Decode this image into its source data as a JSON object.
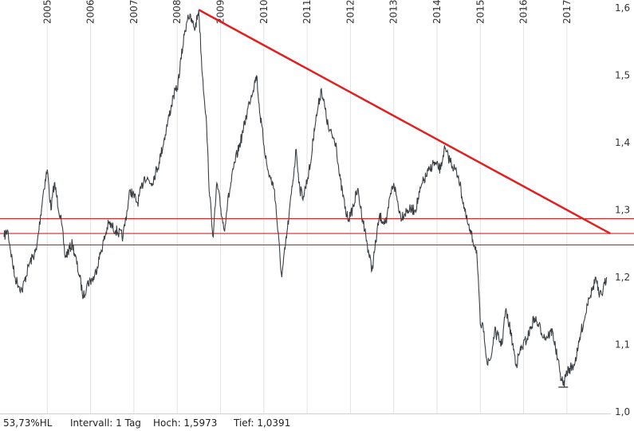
{
  "chart_data": {
    "type": "line",
    "x_axis": {
      "type": "time",
      "ticks": [
        "2005",
        "2006",
        "2007",
        "2008",
        "2009",
        "2010",
        "2011",
        "2012",
        "2013",
        "2014",
        "2015",
        "2016",
        "2017"
      ]
    },
    "y_axis": {
      "position": "right",
      "ticks": [
        "1,6",
        "1,5",
        "1,4",
        "1,3",
        "1,2",
        "1,1",
        "1,0"
      ],
      "ylim": [
        1.0,
        1.6
      ]
    },
    "grid": "vertical",
    "series": [
      {
        "color": "#3a3f44",
        "points": [
          [
            "2004-01-01",
            1.26
          ],
          [
            "2004-02-01",
            1.27
          ],
          [
            "2004-04-01",
            1.2
          ],
          [
            "2004-06-01",
            1.18
          ],
          [
            "2004-08-01",
            1.22
          ],
          [
            "2004-10-01",
            1.24
          ],
          [
            "2004-12-01",
            1.33
          ],
          [
            "2005-01-01",
            1.36
          ],
          [
            "2005-02-01",
            1.3
          ],
          [
            "2005-03-01",
            1.34
          ],
          [
            "2005-05-01",
            1.28
          ],
          [
            "2005-06-01",
            1.23
          ],
          [
            "2005-08-01",
            1.25
          ],
          [
            "2005-10-01",
            1.2
          ],
          [
            "2005-11-01",
            1.17
          ],
          [
            "2005-12-01",
            1.19
          ],
          [
            "2006-02-01",
            1.2
          ],
          [
            "2006-04-01",
            1.24
          ],
          [
            "2006-06-01",
            1.28
          ],
          [
            "2006-08-01",
            1.27
          ],
          [
            "2006-10-01",
            1.26
          ],
          [
            "2006-12-01",
            1.33
          ],
          [
            "2007-02-01",
            1.31
          ],
          [
            "2007-04-01",
            1.35
          ],
          [
            "2007-06-01",
            1.34
          ],
          [
            "2007-08-01",
            1.37
          ],
          [
            "2007-10-01",
            1.42
          ],
          [
            "2007-12-01",
            1.47
          ],
          [
            "2008-01-01",
            1.48
          ],
          [
            "2008-03-01",
            1.56
          ],
          [
            "2008-04-01",
            1.59
          ],
          [
            "2008-06-01",
            1.57
          ],
          [
            "2008-07-01",
            1.5973
          ],
          [
            "2008-08-01",
            1.5
          ],
          [
            "2008-09-01",
            1.44
          ],
          [
            "2008-10-01",
            1.32
          ],
          [
            "2008-11-01",
            1.26
          ],
          [
            "2008-12-01",
            1.34
          ],
          [
            "2009-02-01",
            1.27
          ],
          [
            "2009-03-01",
            1.31
          ],
          [
            "2009-05-01",
            1.37
          ],
          [
            "2009-07-01",
            1.41
          ],
          [
            "2009-09-01",
            1.46
          ],
          [
            "2009-11-01",
            1.5
          ],
          [
            "2009-12-01",
            1.44
          ],
          [
            "2010-02-01",
            1.36
          ],
          [
            "2010-04-01",
            1.33
          ],
          [
            "2010-06-01",
            1.2
          ],
          [
            "2010-08-01",
            1.29
          ],
          [
            "2010-10-01",
            1.39
          ],
          [
            "2010-11-01",
            1.33
          ],
          [
            "2010-12-01",
            1.32
          ],
          [
            "2011-02-01",
            1.37
          ],
          [
            "2011-03-01",
            1.42
          ],
          [
            "2011-04-01",
            1.45
          ],
          [
            "2011-05-01",
            1.48
          ],
          [
            "2011-07-01",
            1.42
          ],
          [
            "2011-09-01",
            1.4
          ],
          [
            "2011-10-01",
            1.35
          ],
          [
            "2011-12-01",
            1.29
          ],
          [
            "2012-01-01",
            1.29
          ],
          [
            "2012-03-01",
            1.33
          ],
          [
            "2012-05-01",
            1.27
          ],
          [
            "2012-07-01",
            1.21
          ],
          [
            "2012-09-01",
            1.29
          ],
          [
            "2012-11-01",
            1.28
          ],
          [
            "2012-12-01",
            1.32
          ],
          [
            "2013-01-01",
            1.34
          ],
          [
            "2013-03-01",
            1.29
          ],
          [
            "2013-05-01",
            1.3
          ],
          [
            "2013-07-01",
            1.3
          ],
          [
            "2013-09-01",
            1.34
          ],
          [
            "2013-11-01",
            1.36
          ],
          [
            "2013-12-01",
            1.37
          ],
          [
            "2014-02-01",
            1.36
          ],
          [
            "2014-03-01",
            1.39
          ],
          [
            "2014-05-01",
            1.37
          ],
          [
            "2014-07-01",
            1.35
          ],
          [
            "2014-09-01",
            1.29
          ],
          [
            "2014-10-01",
            1.27
          ],
          [
            "2014-12-01",
            1.24
          ],
          [
            "2015-01-01",
            1.13
          ],
          [
            "2015-02-01",
            1.12
          ],
          [
            "2015-03-01",
            1.07
          ],
          [
            "2015-04-01",
            1.08
          ],
          [
            "2015-05-01",
            1.12
          ],
          [
            "2015-07-01",
            1.1
          ],
          [
            "2015-08-01",
            1.15
          ],
          [
            "2015-09-01",
            1.13
          ],
          [
            "2015-11-01",
            1.07
          ],
          [
            "2015-12-01",
            1.09
          ],
          [
            "2016-02-01",
            1.11
          ],
          [
            "2016-04-01",
            1.14
          ],
          [
            "2016-05-01",
            1.13
          ],
          [
            "2016-07-01",
            1.11
          ],
          [
            "2016-09-01",
            1.12
          ],
          [
            "2016-11-01",
            1.06
          ],
          [
            "2016-12-01",
            1.0391
          ],
          [
            "2017-01-01",
            1.06
          ],
          [
            "2017-03-01",
            1.07
          ],
          [
            "2017-04-01",
            1.09
          ],
          [
            "2017-05-01",
            1.12
          ],
          [
            "2017-06-01",
            1.14
          ],
          [
            "2017-07-01",
            1.17
          ],
          [
            "2017-08-01",
            1.18
          ],
          [
            "2017-09-01",
            1.2
          ],
          [
            "2017-10-01",
            1.17
          ],
          [
            "2017-11-01",
            1.18
          ],
          [
            "2017-12-01",
            1.2
          ]
        ]
      }
    ],
    "trendline": {
      "color": "#e02020",
      "from": [
        "2008-07-01",
        1.5973
      ],
      "to": [
        "2018-01-01",
        1.265
      ]
    },
    "horizontal_lines": [
      {
        "color": "#e02020",
        "y": 1.287
      },
      {
        "color": "#e02020",
        "y": 1.265
      },
      {
        "color": "#e02020",
        "y": 1.248
      }
    ],
    "low_marker": {
      "x": "2016-12-01",
      "y": 1.0391
    },
    "footer": {
      "hl": "53,73%HL",
      "interval": "Intervall: 1 Tag",
      "high": "Hoch: 1,5973",
      "low": "Tief: 1,0391"
    }
  }
}
